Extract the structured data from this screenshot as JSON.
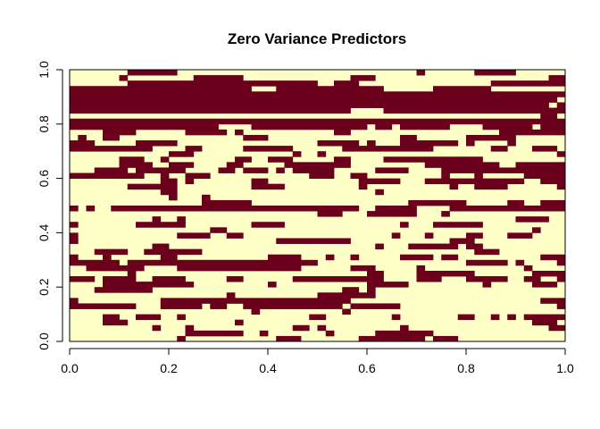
{
  "chart_data": {
    "type": "heatmap",
    "title": "Zero Variance Predictors",
    "xlabel": "",
    "ylabel": "",
    "xlim": [
      0,
      1
    ],
    "ylim": [
      0,
      1
    ],
    "x_ticks": [
      "0.0",
      "0.2",
      "0.4",
      "0.6",
      "0.8",
      "1.0"
    ],
    "y_ticks": [
      "0.0",
      "0.2",
      "0.4",
      "0.6",
      "0.8",
      "1.0"
    ],
    "colors": {
      "zero": "#FFFFC8",
      "one": "#6B001C"
    },
    "grid": false,
    "legend": "none",
    "columns": 60,
    "rows": 50,
    "row_fill_probability": [
      0.15,
      0.25,
      0.2,
      0.35,
      0.3,
      0.2,
      0.4,
      0.35,
      0.25,
      0.3,
      0.45,
      0.4,
      0.35,
      0.35,
      0.4,
      0.45,
      0.3,
      0.25,
      0.2,
      0.25,
      0.15,
      0.2,
      0.15,
      0.2,
      0.8,
      0.3,
      0.2,
      0.25,
      0.3,
      0.45,
      0.55,
      0.7,
      0.65,
      0.35,
      0.25,
      0.75,
      0.4,
      0.3,
      0.35,
      0.5,
      0.85,
      0.2,
      0.95,
      0.97,
      0.97,
      0.95,
      0.45,
      0.75,
      0.15,
      0.2
    ]
  }
}
